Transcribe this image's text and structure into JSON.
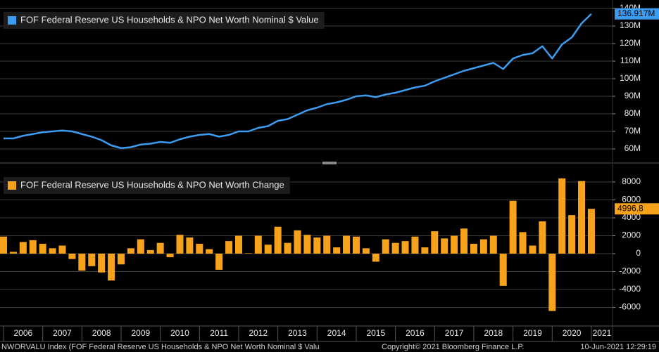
{
  "chart_data": [
    {
      "type": "line",
      "x": [
        2006,
        2006.25,
        2006.5,
        2006.75,
        2007,
        2007.25,
        2007.5,
        2007.75,
        2008,
        2008.25,
        2008.5,
        2008.75,
        2009,
        2009.25,
        2009.5,
        2009.75,
        2010,
        2010.25,
        2010.5,
        2010.75,
        2011,
        2011.25,
        2011.5,
        2011.75,
        2012,
        2012.25,
        2012.5,
        2012.75,
        2013,
        2013.25,
        2013.5,
        2013.75,
        2014,
        2014.25,
        2014.5,
        2014.75,
        2015,
        2015.25,
        2015.5,
        2015.75,
        2016,
        2016.25,
        2016.5,
        2016.75,
        2017,
        2017.25,
        2017.5,
        2017.75,
        2018,
        2018.25,
        2018.5,
        2018.75,
        2019,
        2019.25,
        2019.5,
        2019.75,
        2020,
        2020.25,
        2020.5,
        2020.75,
        2021
      ],
      "xlim": [
        2005.91,
        2021.54
      ],
      "ylim": [
        52.8,
        144.8
      ],
      "yticks": [
        {
          "value": 60,
          "label": "60M"
        },
        {
          "value": 70,
          "label": "70M"
        },
        {
          "value": 80,
          "label": "80M"
        },
        {
          "value": 90,
          "label": "90M"
        },
        {
          "value": 100,
          "label": "100M"
        },
        {
          "value": 110,
          "label": "110M"
        },
        {
          "value": 120,
          "label": "120M"
        },
        {
          "value": 130,
          "label": "130M"
        },
        {
          "value": 140,
          "label": "140M"
        }
      ],
      "grid": true,
      "legend": "upper left",
      "series": [
        {
          "name": "FOF Federal Reserve US Households & NPO Net Worth Nominal $ Value",
          "color": "#3d9bf0",
          "values": [
            66,
            66,
            67.5,
            68.5,
            69.5,
            70,
            70.5,
            70,
            68.5,
            67,
            65,
            62,
            60.5,
            61,
            62.5,
            63,
            64,
            63.5,
            65.5,
            67,
            68,
            68.5,
            67,
            68,
            70,
            70,
            72,
            73,
            76,
            77,
            79.5,
            82,
            83.5,
            85.5,
            86.5,
            88,
            90,
            90.5,
            89.5,
            91,
            92,
            93.5,
            95,
            96,
            98.5,
            100.5,
            102.5,
            104.5,
            106,
            107.5,
            109,
            105.5,
            111.5,
            113.5,
            114.5,
            118.5,
            111.5,
            119.5,
            123.5,
            131.5,
            136.917
          ],
          "last_value_label": "136.917M"
        }
      ]
    },
    {
      "type": "bar",
      "x": [
        2006,
        2006.25,
        2006.5,
        2006.75,
        2007,
        2007.25,
        2007.5,
        2007.75,
        2008,
        2008.25,
        2008.5,
        2008.75,
        2009,
        2009.25,
        2009.5,
        2009.75,
        2010,
        2010.25,
        2010.5,
        2010.75,
        2011,
        2011.25,
        2011.5,
        2011.75,
        2012,
        2012.25,
        2012.5,
        2012.75,
        2013,
        2013.25,
        2013.5,
        2013.75,
        2014,
        2014.25,
        2014.5,
        2014.75,
        2015,
        2015.25,
        2015.5,
        2015.75,
        2016,
        2016.25,
        2016.5,
        2016.75,
        2017,
        2017.25,
        2017.5,
        2017.75,
        2018,
        2018.25,
        2018.5,
        2018.75,
        2019,
        2019.25,
        2019.5,
        2019.75,
        2020,
        2020.25,
        2020.5,
        2020.75,
        2021
      ],
      "xlim": [
        2005.91,
        2021.54
      ],
      "xticks": [
        2006,
        2007,
        2008,
        2009,
        2010,
        2011,
        2012,
        2013,
        2014,
        2015,
        2016,
        2017,
        2018,
        2019,
        2020,
        2021
      ],
      "ylim": [
        -7920,
        9880
      ],
      "yticks": [
        -6000,
        -4000,
        -2000,
        0,
        2000,
        4000,
        6000,
        8000
      ],
      "grid": true,
      "legend": "upper left",
      "series": [
        {
          "name": "FOF Federal Reserve US Households & NPO Net Worth Change",
          "color": "#f7a21b",
          "values": [
            1900,
            200,
            1300,
            1500,
            1100,
            600,
            900,
            -600,
            -1900,
            -1400,
            -2100,
            -3000,
            -1200,
            600,
            1600,
            400,
            1200,
            -400,
            2100,
            1800,
            1100,
            500,
            -1800,
            1400,
            2000,
            50,
            2000,
            1000,
            3000,
            1200,
            2600,
            2100,
            1800,
            2000,
            700,
            2000,
            1900,
            600,
            -900,
            1600,
            1200,
            1400,
            1900,
            700,
            2500,
            1700,
            2000,
            2800,
            1100,
            1600,
            2000,
            -3600,
            5900,
            2400,
            900,
            3600,
            -6400,
            8400,
            4300,
            8100,
            4996.8
          ],
          "last_value_label": "4996.8"
        }
      ]
    }
  ],
  "footer": {
    "left": "NWORVALU Index (FOF Federal Reserve US Households & NPO Net Worth Nominal $ Valu",
    "center": "Copyright© 2021 Bloomberg Finance L.P.",
    "right": "10-Jun-2021 12:29:19"
  }
}
